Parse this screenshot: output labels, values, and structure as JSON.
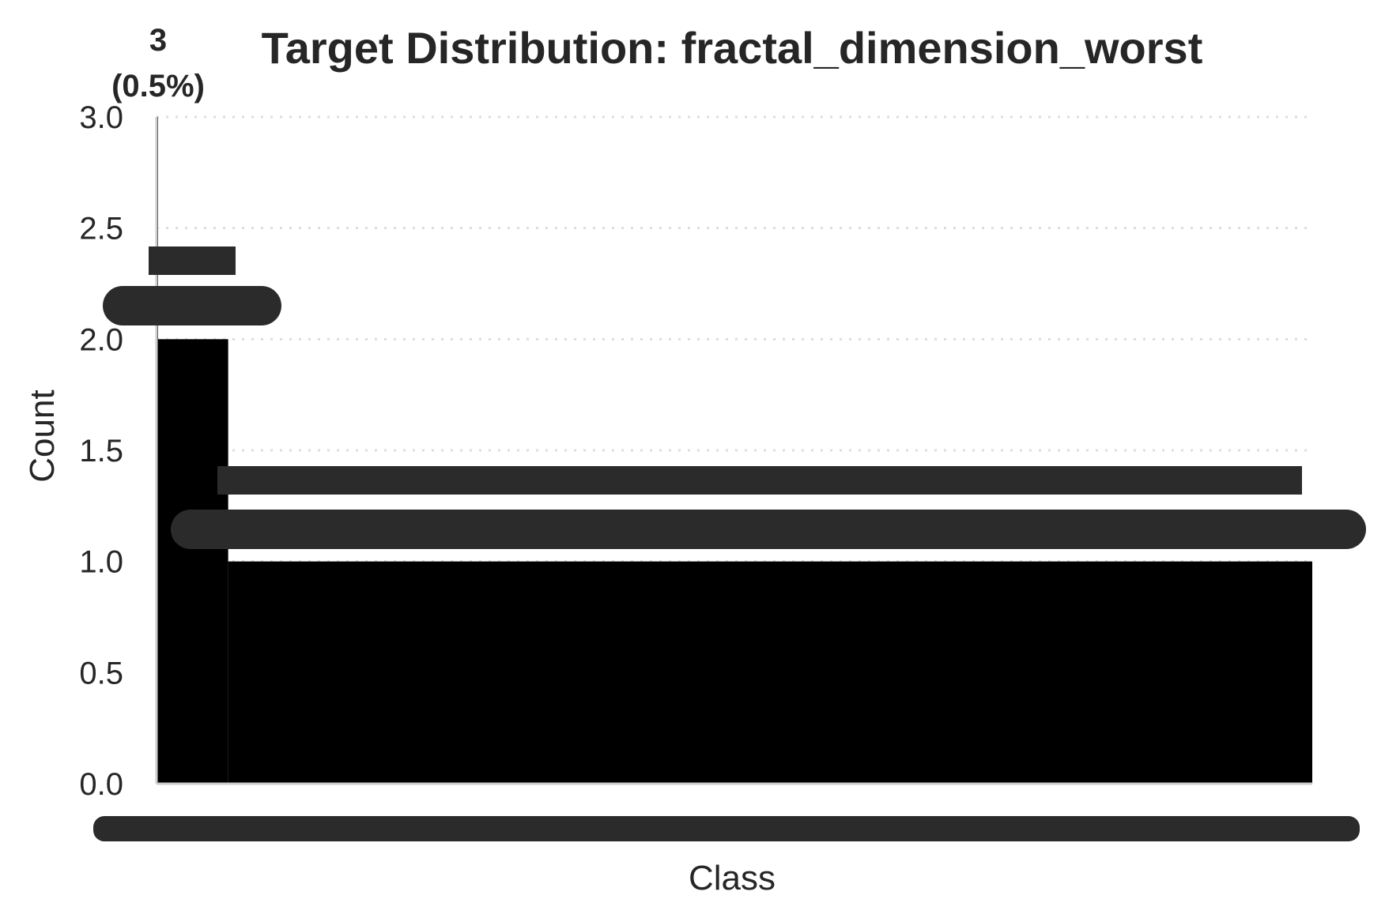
{
  "chart_data": {
    "type": "bar",
    "title": "Target Distribution: fractal_dimension_worst",
    "xlabel": "Class",
    "ylabel": "Count",
    "ylim": [
      0,
      3.0
    ],
    "yticks": [
      "0.0",
      "0.5",
      "1.0",
      "1.5",
      "2.0",
      "2.5",
      "3.0"
    ],
    "grid": "y-dotted",
    "legend": "none",
    "bar_color": "#000000",
    "label_band_color": "#2b2b2b",
    "series": [
      {
        "from_fraction": 0.0,
        "to_fraction": 0.0008,
        "value": 3,
        "label_count": "3",
        "label_pct": "(0.5%)"
      },
      {
        "from_fraction": 0.0008,
        "to_fraction": 0.062,
        "value": 2
      },
      {
        "from_fraction": 0.062,
        "to_fraction": 1.0,
        "value": 1
      }
    ]
  }
}
